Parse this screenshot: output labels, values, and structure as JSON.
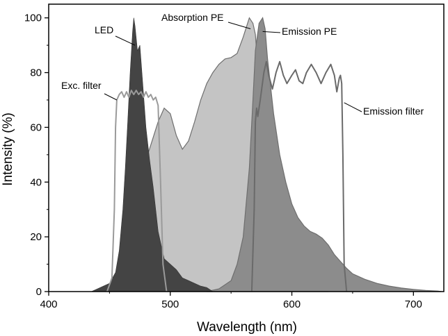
{
  "chart_data": {
    "type": "area",
    "title": "",
    "xlabel": "Wavelength (nm)",
    "ylabel": "Intensity (%)",
    "xlim": [
      400,
      725
    ],
    "ylim": [
      0,
      105
    ],
    "x_ticks": [
      400,
      500,
      600,
      700
    ],
    "y_ticks": [
      0,
      20,
      40,
      60,
      80,
      100
    ],
    "x_tick_labels": [
      "400",
      "500",
      "600",
      "700"
    ],
    "y_tick_labels": [
      "0",
      "20",
      "40",
      "60",
      "80",
      "100"
    ],
    "grid": false,
    "colors": {
      "absorption_pe": "#c4c4c4",
      "emission_pe": "#8c8c8c",
      "led": "#444444",
      "exc_filter": "#9a9a9a",
      "emission_filter": "#6a6a6a"
    },
    "series": [
      {
        "name": "Absorption PE",
        "style": "filled",
        "points": [
          [
            450,
            0
          ],
          [
            455,
            3
          ],
          [
            460,
            8
          ],
          [
            465,
            15
          ],
          [
            470,
            25
          ],
          [
            475,
            38
          ],
          [
            480,
            48
          ],
          [
            485,
            55
          ],
          [
            490,
            62
          ],
          [
            495,
            67
          ],
          [
            500,
            65
          ],
          [
            505,
            57
          ],
          [
            510,
            52
          ],
          [
            515,
            55
          ],
          [
            520,
            62
          ],
          [
            525,
            70
          ],
          [
            530,
            76
          ],
          [
            535,
            80
          ],
          [
            540,
            83
          ],
          [
            545,
            85
          ],
          [
            550,
            85.5
          ],
          [
            555,
            87
          ],
          [
            560,
            93
          ],
          [
            565,
            100
          ],
          [
            568,
            98
          ],
          [
            570,
            94
          ],
          [
            572,
            82
          ],
          [
            575,
            66
          ],
          [
            580,
            45
          ],
          [
            585,
            33
          ],
          [
            590,
            23
          ],
          [
            595,
            15
          ],
          [
            600,
            9
          ],
          [
            605,
            5
          ],
          [
            610,
            3
          ],
          [
            620,
            1
          ],
          [
            630,
            0
          ]
        ]
      },
      {
        "name": "Emission PE",
        "style": "filled",
        "points": [
          [
            530,
            0
          ],
          [
            540,
            1
          ],
          [
            550,
            4
          ],
          [
            555,
            10
          ],
          [
            560,
            20
          ],
          [
            565,
            45
          ],
          [
            568,
            70
          ],
          [
            570,
            88
          ],
          [
            573,
            98
          ],
          [
            576,
            100
          ],
          [
            578,
            96
          ],
          [
            580,
            85
          ],
          [
            585,
            65
          ],
          [
            590,
            50
          ],
          [
            595,
            40
          ],
          [
            600,
            32
          ],
          [
            605,
            27
          ],
          [
            610,
            24
          ],
          [
            615,
            22
          ],
          [
            620,
            21
          ],
          [
            625,
            19.5
          ],
          [
            630,
            17
          ],
          [
            635,
            13.5
          ],
          [
            640,
            11
          ],
          [
            645,
            8.5
          ],
          [
            650,
            6.5
          ],
          [
            660,
            4.5
          ],
          [
            670,
            3
          ],
          [
            680,
            2
          ],
          [
            690,
            1.3
          ],
          [
            700,
            0.8
          ],
          [
            710,
            0.4
          ],
          [
            720,
            0.2
          ],
          [
            723,
            0
          ]
        ]
      },
      {
        "name": "LED",
        "style": "filled",
        "points": [
          [
            435,
            0
          ],
          [
            440,
            1
          ],
          [
            445,
            2
          ],
          [
            450,
            3
          ],
          [
            455,
            7
          ],
          [
            458,
            15
          ],
          [
            461,
            30
          ],
          [
            463,
            45
          ],
          [
            465,
            62
          ],
          [
            467,
            80
          ],
          [
            469,
            95
          ],
          [
            470,
            100
          ],
          [
            471,
            97
          ],
          [
            473,
            88
          ],
          [
            475,
            90
          ],
          [
            477,
            78
          ],
          [
            480,
            60
          ],
          [
            483,
            48
          ],
          [
            486,
            38
          ],
          [
            490,
            22
          ],
          [
            495,
            12
          ],
          [
            500,
            10
          ],
          [
            505,
            8
          ],
          [
            510,
            5
          ],
          [
            515,
            4
          ],
          [
            520,
            3
          ],
          [
            525,
            2
          ],
          [
            530,
            1.5
          ],
          [
            535,
            0
          ]
        ]
      },
      {
        "name": "Exc. filter",
        "style": "line",
        "points": [
          [
            448,
            0
          ],
          [
            452,
            5
          ],
          [
            454,
            30
          ],
          [
            455,
            60
          ],
          [
            456,
            70
          ],
          [
            458,
            72
          ],
          [
            460,
            73
          ],
          [
            462,
            71
          ],
          [
            464,
            73
          ],
          [
            466,
            71
          ],
          [
            468,
            73.5
          ],
          [
            470,
            72
          ],
          [
            472,
            73.5
          ],
          [
            474,
            72
          ],
          [
            476,
            73
          ],
          [
            478,
            71
          ],
          [
            480,
            73
          ],
          [
            482,
            71
          ],
          [
            484,
            72
          ],
          [
            486,
            70
          ],
          [
            488,
            71
          ],
          [
            490,
            68
          ],
          [
            492,
            40
          ],
          [
            494,
            10
          ],
          [
            497,
            0
          ]
        ]
      },
      {
        "name": "Emission filter",
        "style": "line",
        "points": [
          [
            567,
            0
          ],
          [
            569,
            30
          ],
          [
            570,
            62
          ],
          [
            571,
            67
          ],
          [
            572,
            64
          ],
          [
            574,
            70
          ],
          [
            577,
            80
          ],
          [
            579,
            84
          ],
          [
            581,
            79
          ],
          [
            584,
            74
          ],
          [
            587,
            80
          ],
          [
            590,
            84
          ],
          [
            593,
            79
          ],
          [
            596,
            76
          ],
          [
            600,
            79
          ],
          [
            603,
            81
          ],
          [
            606,
            77
          ],
          [
            609,
            76
          ],
          [
            612,
            80
          ],
          [
            616,
            83
          ],
          [
            620,
            80
          ],
          [
            624,
            76
          ],
          [
            628,
            80
          ],
          [
            632,
            83
          ],
          [
            635,
            79
          ],
          [
            637,
            73
          ],
          [
            639,
            78
          ],
          [
            640,
            79
          ],
          [
            641,
            76
          ],
          [
            642,
            50
          ],
          [
            643,
            10
          ],
          [
            645,
            0
          ]
        ]
      }
    ],
    "annotations": [
      {
        "text": "LED",
        "series": "LED"
      },
      {
        "text": "Absorption PE",
        "series": "Absorption PE"
      },
      {
        "text": "Emission PE",
        "series": "Emission PE"
      },
      {
        "text": "Exc. filter",
        "series": "Exc. filter"
      },
      {
        "text": "Emission filter",
        "series": "Emission filter"
      }
    ]
  }
}
